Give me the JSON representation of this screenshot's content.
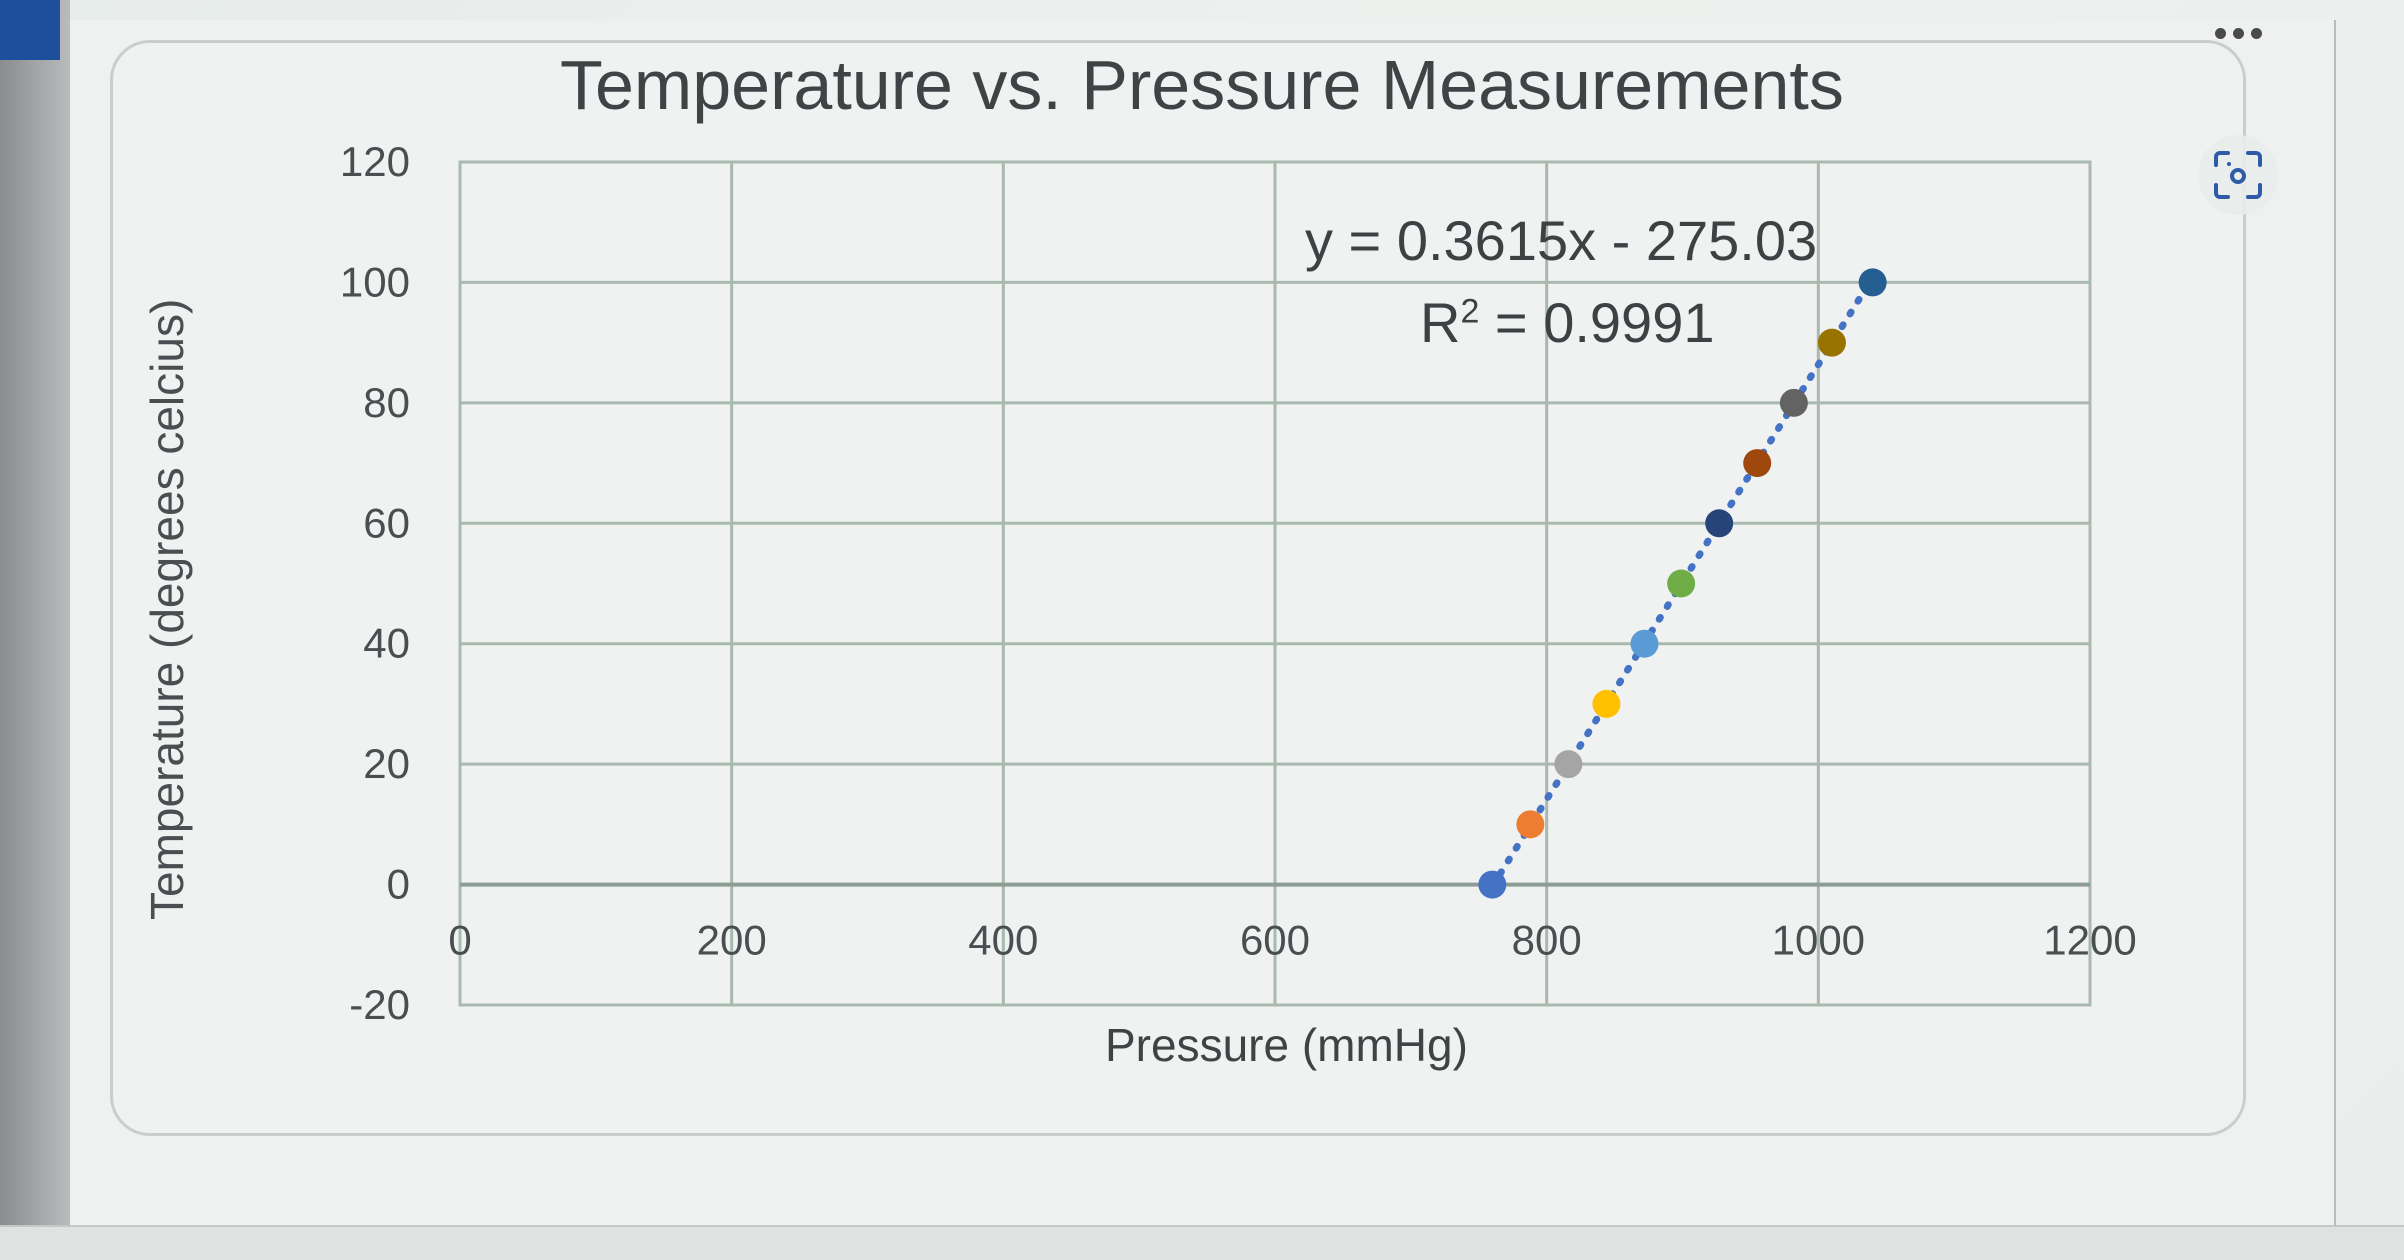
{
  "window": {
    "more_icon": "ellipsis-icon",
    "scan_icon": "visual-search-icon"
  },
  "chart_data": {
    "type": "scatter",
    "title": "Temperature vs. Pressure Measurements",
    "xlabel": "Pressure (mmHg)",
    "ylabel": "Temperature (degrees celcius)",
    "xlim": [
      0,
      1200
    ],
    "ylim": [
      -20,
      120
    ],
    "x_ticks": [
      0,
      200,
      400,
      600,
      800,
      1000,
      1200
    ],
    "y_ticks": [
      120,
      100,
      80,
      60,
      40,
      20,
      0,
      -20
    ],
    "grid": true,
    "legend": "none",
    "points": [
      {
        "x": 760,
        "y": 0,
        "color": "#4472C4"
      },
      {
        "x": 788,
        "y": 10,
        "color": "#ED7D31"
      },
      {
        "x": 816,
        "y": 20,
        "color": "#A5A5A5"
      },
      {
        "x": 844,
        "y": 30,
        "color": "#FFC000"
      },
      {
        "x": 872,
        "y": 40,
        "color": "#5B9BD5"
      },
      {
        "x": 899,
        "y": 50,
        "color": "#70AD47"
      },
      {
        "x": 927,
        "y": 60,
        "color": "#264478"
      },
      {
        "x": 955,
        "y": 70,
        "color": "#9E480E"
      },
      {
        "x": 982,
        "y": 80,
        "color": "#636363"
      },
      {
        "x": 1010,
        "y": 90,
        "color": "#997300"
      },
      {
        "x": 1040,
        "y": 100,
        "color": "#255E91"
      }
    ],
    "series": [
      {
        "name": "Temperature",
        "x": [
          760,
          788,
          816,
          844,
          872,
          899,
          927,
          955,
          982,
          1010,
          1040
        ],
        "values": [
          0,
          10,
          20,
          30,
          40,
          50,
          60,
          70,
          80,
          90,
          100
        ]
      }
    ],
    "trendline": {
      "type": "linear",
      "style": "dotted",
      "color": "#4472C4",
      "slope": 0.3615,
      "intercept": -275.03,
      "equation_label": "y = 0.3615x - 275.03",
      "r2_prefix": "R",
      "r2_sup": "2",
      "r2_value_label": " = 0.9991",
      "r_squared": 0.9991
    }
  }
}
